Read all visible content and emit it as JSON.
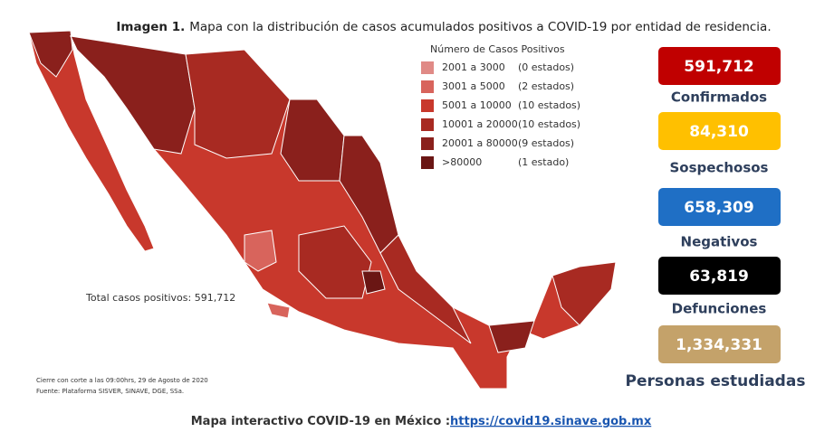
{
  "title": {
    "bold": "Imagen 1.",
    "text": "Mapa con la distribución de casos acumulados positivos a COVID-19 por entidad de residencia."
  },
  "legend": {
    "title": "Número de Casos Positivos",
    "items": [
      {
        "range": "2001 a  3000",
        "count": "(0 estados)",
        "color": "#e08a86"
      },
      {
        "range": "3001 a  5000",
        "count": "(2 estados)",
        "color": "#d8645c"
      },
      {
        "range": "5001 a 10000",
        "count": "(10 estados)",
        "color": "#c8382c"
      },
      {
        "range": "10001 a 20000",
        "count": "(10 estados)",
        "color": "#a82a22"
      },
      {
        "range": "20001 a 80000",
        "count": "(9 estados)",
        "color": "#8a201c"
      },
      {
        "range": ">80000",
        "count": "(1 estado)",
        "color": "#6a1614"
      }
    ]
  },
  "total": "Total casos positivos: 591,712",
  "notes": [
    "Cierre con corte a las 09:00hrs, 29 de Agosto de 2020",
    "Fuente: Plataforma SISVER, SINAVE, DGE, SSa."
  ],
  "stats": [
    {
      "value": "591,712",
      "label": "Confirmados",
      "color": "#c00000"
    },
    {
      "value": "84,310",
      "label": "Sospechosos",
      "color": "#ffc000"
    },
    {
      "value": "658,309",
      "label": "Negativos",
      "color": "#1f6fc5"
    },
    {
      "value": "63,819",
      "label": "Defunciones",
      "color": "#000000"
    },
    {
      "value": "1,334,331",
      "label": "Personas estudiadas",
      "color": "#c4a26a"
    }
  ],
  "footer": {
    "text": "Mapa interactivo COVID-19 en México :",
    "link": "https://covid19.sinave.gob.mx"
  }
}
